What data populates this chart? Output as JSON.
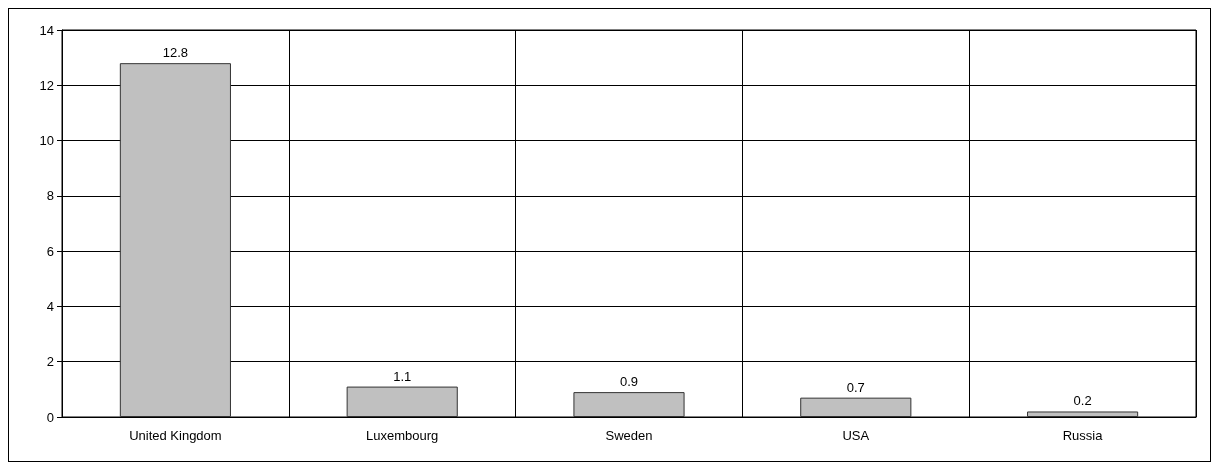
{
  "chart_data": {
    "type": "bar",
    "categories": [
      "United Kingdom",
      "Luxembourg",
      "Sweden",
      "USA",
      "Russia"
    ],
    "values": [
      12.8,
      1.1,
      0.9,
      0.7,
      0.2
    ],
    "color": "#c0c0c0",
    "ylim": [
      0,
      14
    ],
    "yticks": [
      0,
      2,
      4,
      6,
      8,
      10,
      12,
      14
    ],
    "grid": true,
    "data_labels": true
  }
}
